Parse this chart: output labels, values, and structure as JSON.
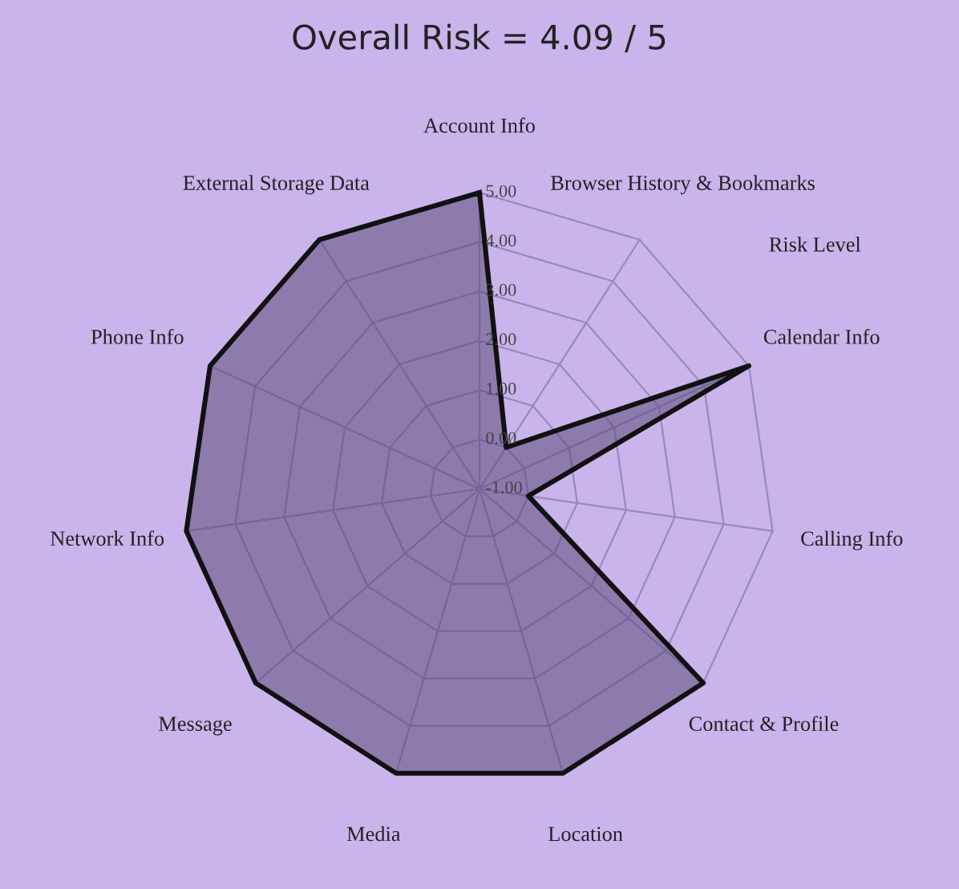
{
  "chart_data": {
    "type": "radar",
    "title": "Overall Risk = 4.09 / 5",
    "ylabel": "Risk Level",
    "categories": [
      "Account Info",
      "Browser History & Bookmarks",
      "Calendar Info",
      "Calling Info",
      "Contact & Profile",
      "Location",
      "Media",
      "Message",
      "Network Info",
      "Phone Info",
      "External Storage Data"
    ],
    "series": [
      {
        "color": "#5a4a78",
        "values": [
          5,
          0,
          5,
          0,
          5,
          5,
          5,
          5,
          5,
          5,
          5
        ]
      }
    ],
    "ylim": [
      -1,
      5
    ],
    "yticks": [
      {
        "value": -1,
        "label": "-1.00"
      },
      {
        "value": 0,
        "label": "0.00"
      },
      {
        "value": 1,
        "label": "1.00"
      },
      {
        "value": 2,
        "label": "2.00"
      },
      {
        "value": 3,
        "label": "3.00"
      },
      {
        "value": 4,
        "label": "4.00"
      },
      {
        "value": 5,
        "label": "5.00"
      }
    ],
    "grid": true
  }
}
